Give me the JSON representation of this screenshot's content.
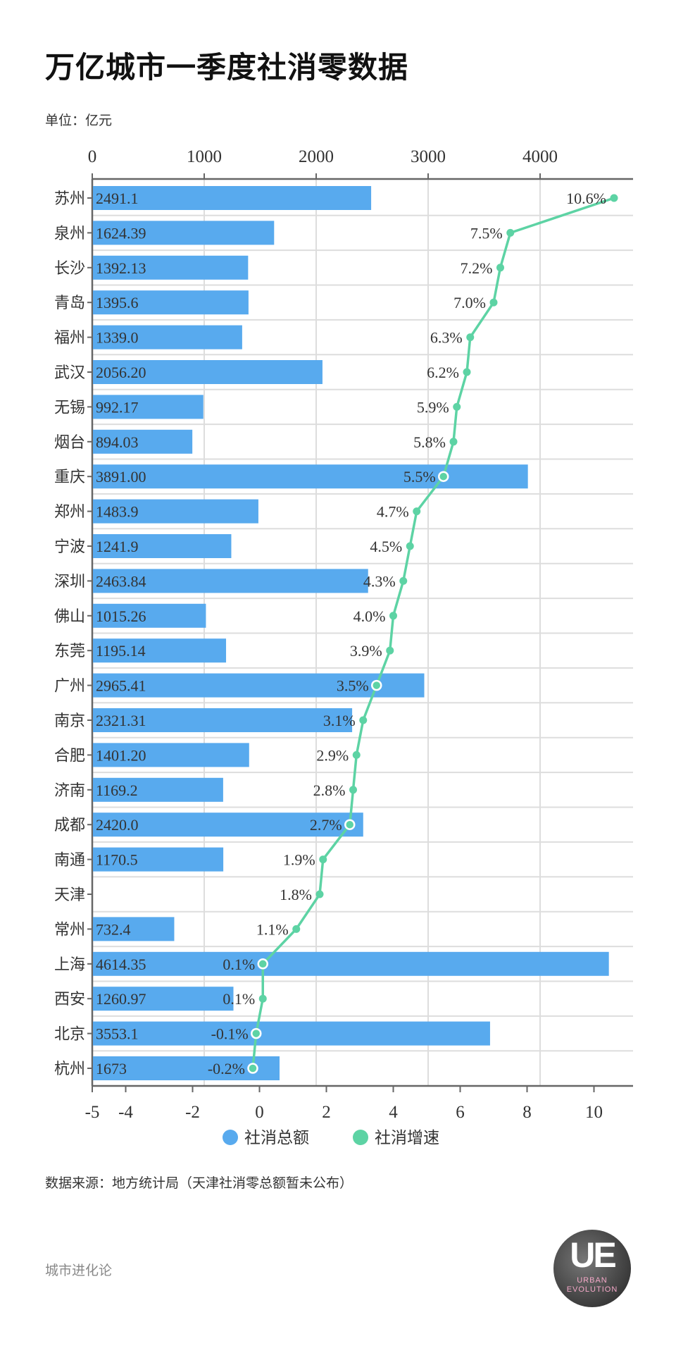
{
  "title": "万亿城市一季度社消零数据",
  "unit": "单位：亿元",
  "source": "数据来源：地方统计局（天津社消零总额暂未公布）",
  "footer": "城市进化论",
  "logo": {
    "mark": "UE",
    "text": "URBAN EVOLUTION"
  },
  "colors": {
    "bar": "#58AAEE",
    "line": "#5DD3A4",
    "grid": "#DDDDDD",
    "axis": "#666666"
  },
  "chart_data": {
    "type": "bar+line",
    "orientation": "horizontal",
    "categories": [
      "苏州",
      "泉州",
      "长沙",
      "青岛",
      "福州",
      "武汉",
      "无锡",
      "烟台",
      "重庆",
      "郑州",
      "宁波",
      "深圳",
      "佛山",
      "东莞",
      "广州",
      "南京",
      "合肥",
      "济南",
      "成都",
      "南通",
      "天津",
      "常州",
      "上海",
      "西安",
      "北京",
      "杭州"
    ],
    "series": [
      {
        "name": "社消总额",
        "axis": "top",
        "values": [
          2491.1,
          1624.39,
          1392.13,
          1395.6,
          1339.0,
          2056.2,
          992.17,
          894.03,
          3891.0,
          1483.9,
          1241.9,
          2463.84,
          1015.26,
          1195.14,
          2965.41,
          2321.31,
          1401.2,
          1169.2,
          2420.0,
          1170.5,
          null,
          732.4,
          4614.35,
          1260.97,
          3553.1,
          1673
        ],
        "labels": [
          "2491.1",
          "1624.39",
          "1392.13",
          "1395.6",
          "1339.0",
          "2056.20",
          "992.17",
          "894.03",
          "3891.00",
          "1483.9",
          "1241.9",
          "2463.84",
          "1015.26",
          "1195.14",
          "2965.41",
          "2321.31",
          "1401.20",
          "1169.2",
          "2420.0",
          "1170.5",
          "",
          "732.4",
          "4614.35",
          "1260.97",
          "3553.1",
          "1673"
        ]
      },
      {
        "name": "社消增速",
        "axis": "bottom",
        "values": [
          10.6,
          7.5,
          7.2,
          7.0,
          6.3,
          6.2,
          5.9,
          5.8,
          5.5,
          4.7,
          4.5,
          4.3,
          4.0,
          3.9,
          3.5,
          3.1,
          2.9,
          2.8,
          2.7,
          1.9,
          1.8,
          1.1,
          0.1,
          0.1,
          -0.1,
          -0.2
        ],
        "labels": [
          "10.6%",
          "7.5%",
          "7.2%",
          "7.0%",
          "6.3%",
          "6.2%",
          "5.9%",
          "5.8%",
          "5.5%",
          "4.7%",
          "4.5%",
          "4.3%",
          "4.0%",
          "3.9%",
          "3.5%",
          "3.1%",
          "2.9%",
          "2.8%",
          "2.7%",
          "1.9%",
          "1.8%",
          "1.1%",
          "0.1%",
          "0.1%",
          "-0.1%",
          "-0.2%"
        ]
      }
    ],
    "top_axis": {
      "range": [
        0,
        4830
      ],
      "ticks": [
        "0",
        "1000",
        "2000",
        "3000",
        "4000"
      ]
    },
    "bottom_axis": {
      "range": [
        -5,
        11.2
      ],
      "ticks": [
        "-5",
        "-4",
        "-2",
        "0",
        "2",
        "4",
        "6",
        "8",
        "10"
      ]
    },
    "grid": true,
    "legend": {
      "placement": "bottom",
      "items": [
        "社消总额",
        "社消增速"
      ]
    }
  }
}
